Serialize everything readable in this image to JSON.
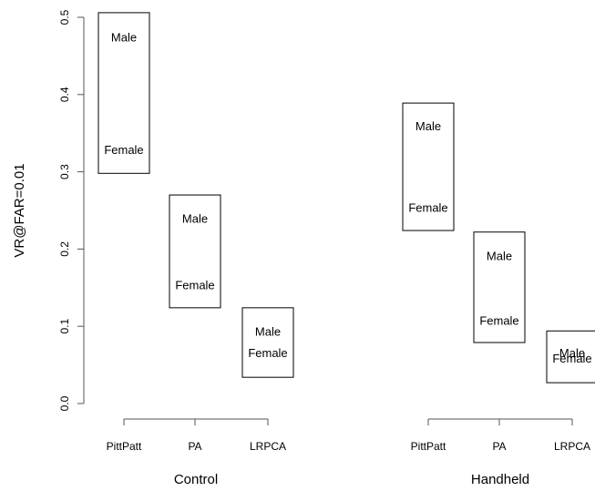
{
  "chart_data": {
    "type": "range",
    "ylabel": "VR@FAR=0.01",
    "ylim": [
      0,
      0.5
    ],
    "yticks": [
      {
        "value": 0,
        "label": "0.0"
      },
      0.1,
      0.2,
      0.3,
      0.4,
      0.5
    ],
    "panels": [
      {
        "xlabel": "Control",
        "categories": [
          "PittPatt",
          "PA",
          "LRPCA"
        ],
        "high": [
          0.506,
          0.27,
          0.124
        ],
        "low": [
          0.298,
          0.124,
          0.034
        ],
        "series": [
          {
            "name": "Male",
            "color": "#ff8c00",
            "values": [
              0.473,
              0.238,
              0.092
            ]
          },
          {
            "name": "Female",
            "color": "#0000ff",
            "values": [
              0.327,
              0.152,
              0.064
            ]
          }
        ]
      },
      {
        "xlabel": "Handheld",
        "categories": [
          "PittPatt",
          "PA",
          "LRPCA"
        ],
        "high": [
          0.389,
          0.222,
          0.094
        ],
        "low": [
          0.224,
          0.079,
          0.027
        ],
        "series": [
          {
            "name": "Male",
            "color": "#ff8c00",
            "values": [
              0.358,
              0.19,
              0.064
            ]
          },
          {
            "name": "Female",
            "color": "#0000ff",
            "values": [
              0.252,
              0.106,
              0.057
            ]
          }
        ]
      }
    ]
  }
}
